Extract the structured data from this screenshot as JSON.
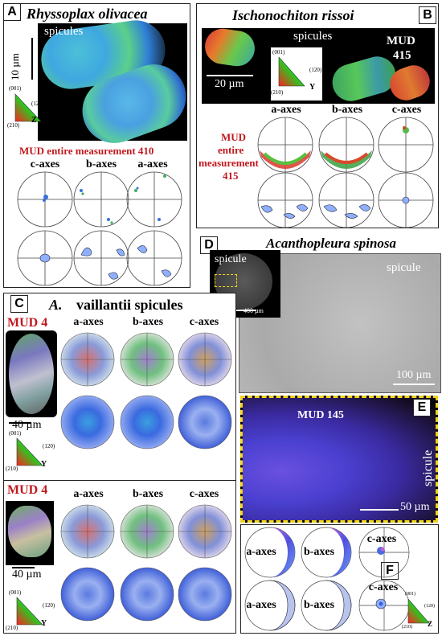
{
  "panelA": {
    "letter": "A",
    "title": "Rhyssoplax olivacea",
    "spicules": "spicules",
    "scale": "10 µm",
    "mud": "MUD entire measurement 410",
    "key": {
      "top": "(001)",
      "bl": "(210)",
      "right": "(120)",
      "axis": "Z"
    },
    "row_labels": [
      "c-axes",
      "b-axes",
      "a-axes"
    ]
  },
  "panelB": {
    "letter": "B",
    "title": "Ischonochiton rissoi",
    "spicules": "spicules",
    "mud_top": "MUD",
    "mud_val": "415",
    "scale": "20 µm",
    "key": {
      "top": "(001)",
      "bl": "(210)",
      "right": "(120)",
      "axis": "Y"
    },
    "row_labels": [
      "a-axes",
      "b-axes",
      "c-axes"
    ],
    "mud_side": [
      "MUD",
      "entire",
      "measurement",
      "415"
    ]
  },
  "panelC": {
    "letter": "C",
    "title_italic": "A.",
    "title_rest": "vaillantii spicules",
    "mud1": "MUD 4",
    "mud2": "MUD 4",
    "scale1": "40 µm",
    "scale2": "40 µm",
    "key": {
      "top": "(001)",
      "bl": "(210)",
      "right": "(120)",
      "axis": "Y"
    },
    "row_labels": [
      "a-axes",
      "b-axes",
      "c-axes"
    ]
  },
  "panelD": {
    "letter": "D",
    "title": "Acanthopleura spinosa",
    "spicule_left": "spicule",
    "spicule_right": "spicule",
    "scale_small": "400 µm",
    "scale_big": "100 µm"
  },
  "panelE": {
    "letter": "E",
    "mud": "MUD 145",
    "spicule": "spicule",
    "scale": "50 µm"
  },
  "panelF": {
    "letter": "F",
    "labels": [
      "a-axes",
      "b-axes",
      "c-axes"
    ],
    "key": {
      "top": "(001)",
      "bl": "(210)",
      "right": "(120)",
      "axis": "Z"
    }
  },
  "colors": {
    "mud_red": "#c0181f",
    "border_yellow": "#f2d21a"
  }
}
